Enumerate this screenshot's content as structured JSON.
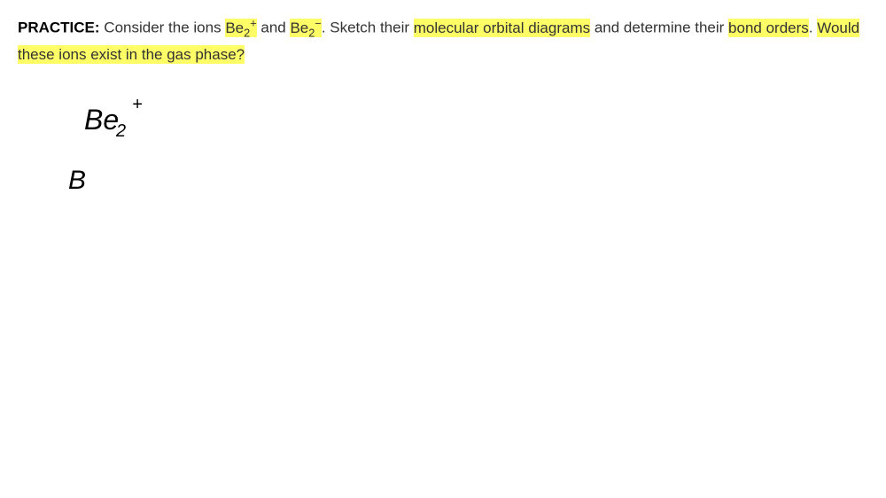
{
  "practice": {
    "label": "PRACTICE:",
    "text_part1": " Consider the ions ",
    "ion1_base": "Be",
    "ion1_sub": "2",
    "ion1_sup": "+",
    "text_part2": " and ",
    "ion2_base": "Be",
    "ion2_sub": "2",
    "ion2_sup": "−",
    "text_part3": ". Sketch their ",
    "highlight1": "molecular orbital diagrams",
    "text_part4": " and determine their ",
    "highlight2": "bond orders",
    "text_part5": ". ",
    "highlight3": "Would these ions exist in the gas phase?"
  },
  "handwriting": {
    "be2_main": "Be",
    "be2_subscript": "2",
    "be2_superscript": "+",
    "b_label": "B"
  },
  "colors": {
    "highlight_bg": "#feff66",
    "text_color": "#333333",
    "background": "#ffffff",
    "handwriting_color": "#000000"
  },
  "typography": {
    "body_fontsize": 17,
    "handwriting_fontsize": 32,
    "practice_label_weight": "bold"
  }
}
